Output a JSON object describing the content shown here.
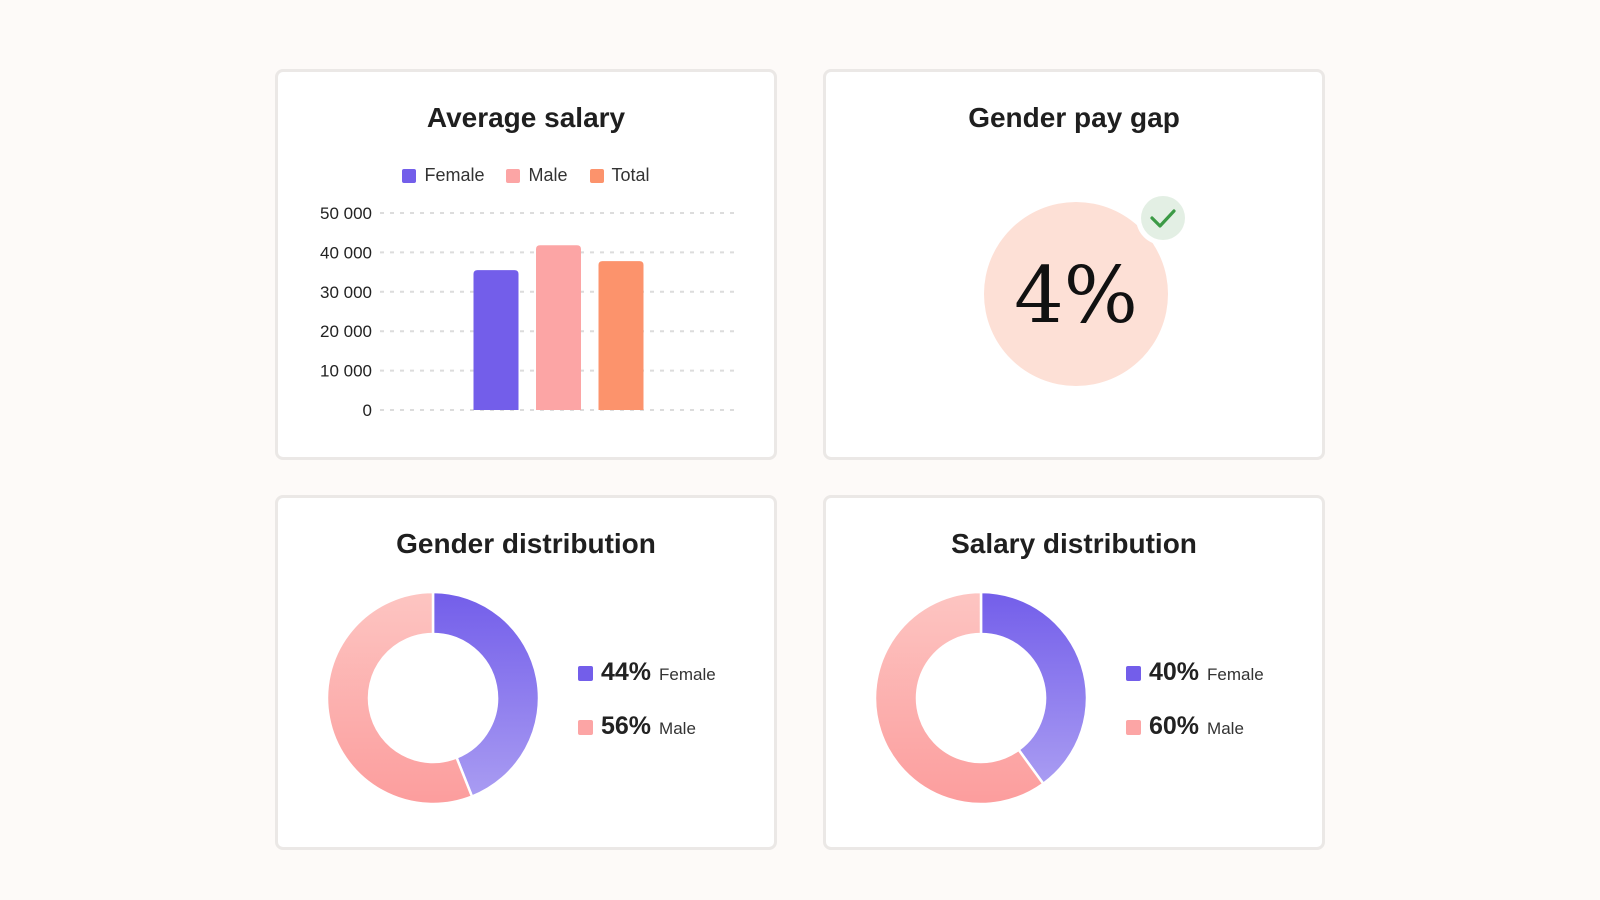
{
  "colors": {
    "female": "#735eea",
    "male": "#fca5a5",
    "total": "#fc936c",
    "gap_circle": "#fde0d6",
    "check_bg": "#e3efe4",
    "check_mark": "#3c9a46",
    "grid": "#dcdcdc"
  },
  "cards": {
    "avg_salary_title": "Average salary",
    "gap_title": "Gender pay gap",
    "gender_title": "Gender distribution",
    "salary_title": "Salary distribution"
  },
  "chart_data": [
    {
      "type": "bar",
      "title": "Average salary",
      "categories": [
        "Female",
        "Male",
        "Total"
      ],
      "values": [
        35500,
        41800,
        37800
      ],
      "legend": [
        "Female",
        "Male",
        "Total"
      ],
      "ylim": [
        0,
        50000
      ],
      "yticks": [
        0,
        10000,
        20000,
        30000,
        40000,
        50000
      ],
      "ytick_labels": [
        "0",
        "10 000",
        "20 000",
        "30 000",
        "40 000",
        "50 000"
      ],
      "grid": true,
      "legend_position": "top"
    },
    {
      "type": "pie",
      "title": "Gender distribution",
      "labels": [
        "Female",
        "Male"
      ],
      "values": [
        44,
        56
      ],
      "value_labels": [
        "44%",
        "56%"
      ],
      "donut": true,
      "legend_position": "right"
    },
    {
      "type": "pie",
      "title": "Salary distribution",
      "labels": [
        "Female",
        "Male"
      ],
      "values": [
        40,
        60
      ],
      "value_labels": [
        "40%",
        "60%"
      ],
      "donut": true,
      "legend_position": "right"
    }
  ],
  "pay_gap": {
    "value": "4%",
    "status_icon": "check-icon"
  }
}
